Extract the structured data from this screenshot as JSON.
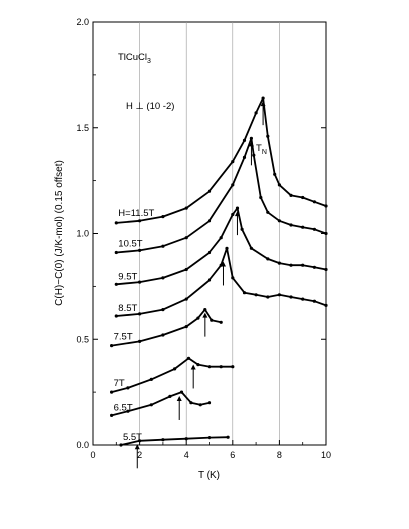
{
  "chart_data": {
    "type": "line",
    "xlabel": "T (K)",
    "ylabel": "C(H)−C(0) (J/K-mol) (0.15 offset)",
    "xlim": [
      0,
      10
    ],
    "ylim": [
      0,
      2.0
    ],
    "xticks": [
      "0",
      "2",
      "4",
      "6",
      "8",
      "10"
    ],
    "yticks": [
      "0.0",
      "0.5",
      "1.0",
      "1.5",
      "2.0"
    ],
    "grid": "vertical",
    "annotations": {
      "compound": "TlCuCl",
      "compound_sub": "3",
      "field_direction": "H ⊥ (10 -2)",
      "tn_label": "T",
      "tn_sub": "N"
    },
    "series": [
      {
        "name": "5.5T",
        "x": [
          1.2,
          2.0,
          3.0,
          4.0,
          5.0,
          5.8
        ],
        "y": [
          0.0,
          0.02,
          0.025,
          0.03,
          0.035,
          0.037
        ],
        "arrow_T": 1.9
      },
      {
        "name": "6.5T",
        "x": [
          0.8,
          1.5,
          2.5,
          3.3,
          3.8,
          4.2,
          4.6,
          5.0
        ],
        "y": [
          0.14,
          0.16,
          0.19,
          0.23,
          0.25,
          0.2,
          0.19,
          0.2
        ],
        "arrow_T": 3.7
      },
      {
        "name": "7T",
        "x": [
          0.8,
          1.5,
          2.5,
          3.5,
          4.1,
          4.5,
          5.0,
          5.5,
          6.0
        ],
        "y": [
          0.25,
          0.27,
          0.31,
          0.36,
          0.41,
          0.38,
          0.37,
          0.37,
          0.37
        ],
        "arrow_T": 4.3
      },
      {
        "name": "7.5T",
        "x": [
          0.8,
          2.0,
          3.0,
          4.0,
          4.5,
          4.8,
          5.1,
          5.5
        ],
        "y": [
          0.47,
          0.49,
          0.52,
          0.56,
          0.6,
          0.64,
          0.59,
          0.58
        ],
        "arrow_T": 4.8
      },
      {
        "name": "8.5T",
        "x": [
          1.0,
          2.0,
          3.0,
          4.0,
          5.0,
          5.5,
          5.75,
          6.0,
          6.5,
          7.0,
          7.5,
          8.0,
          8.5,
          9.0,
          9.5,
          10.0
        ],
        "y": [
          0.61,
          0.62,
          0.64,
          0.69,
          0.78,
          0.85,
          0.93,
          0.79,
          0.72,
          0.71,
          0.7,
          0.71,
          0.7,
          0.69,
          0.68,
          0.66
        ],
        "arrow_T": 5.6
      },
      {
        "name": "9.5T",
        "x": [
          1.0,
          2.0,
          3.0,
          4.0,
          5.0,
          5.5,
          6.0,
          6.2,
          6.4,
          6.8,
          7.5,
          8.0,
          8.5,
          9.0,
          9.5,
          10.0
        ],
        "y": [
          0.76,
          0.77,
          0.79,
          0.83,
          0.91,
          0.98,
          1.09,
          1.12,
          1.02,
          0.93,
          0.88,
          0.86,
          0.85,
          0.85,
          0.84,
          0.83
        ],
        "arrow_T": 6.2
      },
      {
        "name": "10.5T",
        "x": [
          1.0,
          2.0,
          3.0,
          4.0,
          5.0,
          6.0,
          6.5,
          6.8,
          6.9,
          7.2,
          7.5,
          8.0,
          8.5,
          9.0,
          9.5,
          10.0
        ],
        "y": [
          0.91,
          0.92,
          0.94,
          0.98,
          1.06,
          1.23,
          1.36,
          1.45,
          1.37,
          1.17,
          1.1,
          1.06,
          1.04,
          1.03,
          1.02,
          1.0
        ],
        "arrow_T": 6.8
      },
      {
        "name": "H=11.5T",
        "x": [
          1.0,
          2.0,
          3.0,
          4.0,
          5.0,
          6.0,
          6.5,
          7.0,
          7.3,
          7.5,
          7.8,
          8.0,
          8.5,
          9.0,
          9.5,
          10.0
        ],
        "y": [
          1.05,
          1.06,
          1.08,
          1.12,
          1.2,
          1.34,
          1.44,
          1.57,
          1.64,
          1.46,
          1.28,
          1.23,
          1.18,
          1.17,
          1.15,
          1.13
        ],
        "arrow_T": 7.3
      }
    ]
  }
}
